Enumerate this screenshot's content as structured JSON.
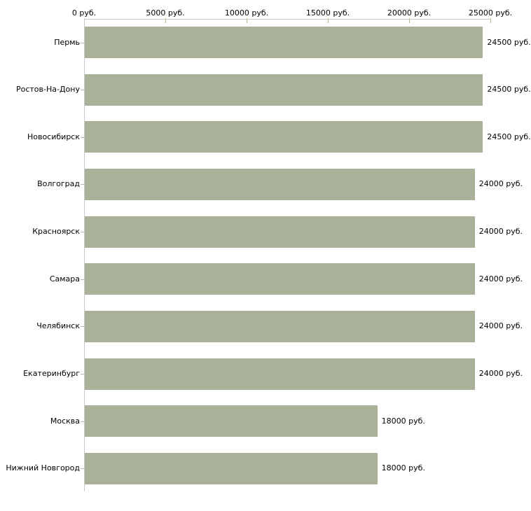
{
  "chart_data": {
    "type": "bar",
    "orientation": "horizontal",
    "title": "",
    "categories": [
      "Пермь",
      "Ростов-На-Дону",
      "Новосибирск",
      "Волгоград",
      "Красноярск",
      "Самара",
      "Челябинск",
      "Екатеринбург",
      "Москва",
      "Нижний Новгород"
    ],
    "values": [
      24500,
      24500,
      24500,
      24000,
      24000,
      24000,
      24000,
      24000,
      18000,
      18000
    ],
    "value_labels": [
      "24500 руб.",
      "24500 руб.",
      "24500 руб.",
      "24000 руб.",
      "24000 руб.",
      "24000 руб.",
      "24000 руб.",
      "24000 руб.",
      "18000 руб.",
      "18000 руб."
    ],
    "x_axis": {
      "position": "top",
      "unit": "руб.",
      "min": 0,
      "max": 25000,
      "tick_step": 5000,
      "ticks": [
        0,
        5000,
        10000,
        15000,
        20000,
        25000
      ],
      "tick_labels": [
        "0 руб.",
        "5000 руб.",
        "10000 руб.",
        "15000 руб.",
        "20000 руб.",
        "25000 руб."
      ]
    },
    "grid": false,
    "legend": "none"
  },
  "colors": {
    "background": "#ffffff",
    "bar": "#a9b299",
    "axis_line": "#c9c9c9",
    "x_tick_mark": "#b2b284",
    "y_tick_mark": "#c4b2b2",
    "text": "#000000"
  }
}
